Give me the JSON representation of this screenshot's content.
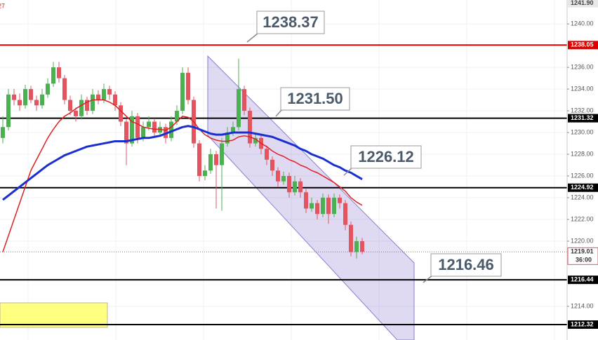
{
  "chart_data": {
    "type": "candlestick",
    "corner_text": "27",
    "up_color": "#4caf50",
    "down_color": "#e5535f",
    "ylim": [
      1210.9,
      1242.2
    ],
    "yticks": [
      {
        "value": 1240,
        "label": "1240.00"
      },
      {
        "value": 1236,
        "label": "1236.00"
      },
      {
        "value": 1234,
        "label": "1234.00"
      },
      {
        "value": 1232,
        "label": "1232.00"
      },
      {
        "value": 1230,
        "label": "1230.00"
      },
      {
        "value": 1228,
        "label": "1228.00"
      },
      {
        "value": 1226,
        "label": "1226.00"
      },
      {
        "value": 1224,
        "label": "1224.00"
      },
      {
        "value": 1222,
        "label": "1222.00"
      },
      {
        "value": 1220,
        "label": "1220.00"
      },
      {
        "value": 1214,
        "label": "1214.00"
      }
    ],
    "top_price": {
      "value": 1241.9,
      "label": "1241.90"
    },
    "levels": [
      {
        "price": 1238.05,
        "color": "#e00000"
      },
      {
        "price": 1231.32,
        "color": "#000000"
      },
      {
        "price": 1224.92,
        "color": "#000000"
      },
      {
        "price": 1216.44,
        "color": "#000000"
      },
      {
        "price": 1212.32,
        "color": "#000000"
      }
    ],
    "last_price": {
      "price": 1219.01,
      "color": "#e5535f",
      "countdown": "36:00"
    },
    "callouts": [
      "1238.37",
      "1231.50",
      "1226.12",
      "1216.46"
    ],
    "candles": [
      [
        1229.5,
        1231.5,
        1229,
        1230.5
      ],
      [
        1230.5,
        1234,
        1230.2,
        1233.5
      ],
      [
        1233.5,
        1234,
        1232.5,
        1233
      ],
      [
        1233,
        1233.6,
        1232,
        1232.5
      ],
      [
        1232.5,
        1234.4,
        1232.2,
        1234
      ],
      [
        1234,
        1234.3,
        1232.7,
        1233
      ],
      [
        1233,
        1233.4,
        1232,
        1232.5
      ],
      [
        1232.5,
        1234,
        1232.2,
        1233.5
      ],
      [
        1233.5,
        1235,
        1233.2,
        1234.5
      ],
      [
        1234.5,
        1236.5,
        1234.2,
        1236
      ],
      [
        1236,
        1236.5,
        1234.6,
        1235
      ],
      [
        1235,
        1235.3,
        1232.6,
        1233
      ],
      [
        1233,
        1233.4,
        1231.6,
        1232
      ],
      [
        1232,
        1232.3,
        1231,
        1231.5
      ],
      [
        1231.5,
        1233.5,
        1231.2,
        1233
      ],
      [
        1233,
        1233.3,
        1231.6,
        1232
      ],
      [
        1232,
        1234,
        1231.7,
        1233.5
      ],
      [
        1233.5,
        1233.9,
        1232.6,
        1233
      ],
      [
        1233,
        1234.5,
        1232.7,
        1234
      ],
      [
        1234,
        1234.3,
        1233,
        1233.5
      ],
      [
        1233.5,
        1233.8,
        1232,
        1232.5
      ],
      [
        1232.5,
        1232.8,
        1230.6,
        1231
      ],
      [
        1231,
        1231.3,
        1227,
        1229
      ],
      [
        1229,
        1232,
        1228.7,
        1231.5
      ],
      [
        1231.5,
        1231.8,
        1229,
        1229.5
      ],
      [
        1229.5,
        1231,
        1229.2,
        1230.5
      ],
      [
        1230.5,
        1231.5,
        1230.2,
        1231
      ],
      [
        1231,
        1231.3,
        1229.6,
        1230
      ],
      [
        1230,
        1231,
        1229.7,
        1230.5
      ],
      [
        1230.5,
        1230.8,
        1229,
        1229.5
      ],
      [
        1229.5,
        1231.5,
        1229.2,
        1231
      ],
      [
        1231,
        1232.5,
        1230.7,
        1232
      ],
      [
        1232,
        1236,
        1231.7,
        1235.5
      ],
      [
        1235.5,
        1236,
        1232.6,
        1233
      ],
      [
        1233,
        1233.3,
        1228.6,
        1229
      ],
      [
        1229,
        1229.3,
        1225.5,
        1226
      ],
      [
        1226,
        1227,
        1225.6,
        1226.5
      ],
      [
        1226.5,
        1228.5,
        1226.2,
        1228
      ],
      [
        1228,
        1228.3,
        1223,
        1227
      ],
      [
        1227,
        1229.5,
        1222.8,
        1229
      ],
      [
        1229,
        1230.5,
        1228.7,
        1230
      ],
      [
        1230,
        1231,
        1229.7,
        1230.5
      ],
      [
        1230.5,
        1236.8,
        1230.2,
        1234
      ],
      [
        1234,
        1234.3,
        1231.6,
        1232
      ],
      [
        1232,
        1232.3,
        1228.6,
        1229
      ],
      [
        1229,
        1230,
        1228.7,
        1229.5
      ],
      [
        1229.5,
        1229.8,
        1228,
        1228.5
      ],
      [
        1228.5,
        1228.8,
        1227,
        1227.5
      ],
      [
        1227.5,
        1227.8,
        1226,
        1226.5
      ],
      [
        1226.5,
        1226.8,
        1225,
        1225.5
      ],
      [
        1225.5,
        1226.4,
        1225.2,
        1226
      ],
      [
        1226,
        1226.3,
        1224,
        1224.5
      ],
      [
        1224.5,
        1226,
        1224.2,
        1225.5
      ],
      [
        1225.5,
        1225.8,
        1224,
        1224.5
      ],
      [
        1224.5,
        1224.8,
        1222.6,
        1223
      ],
      [
        1223,
        1224,
        1222.7,
        1223.5
      ],
      [
        1223.5,
        1223.8,
        1222,
        1222.5
      ],
      [
        1222.5,
        1224.4,
        1222.2,
        1224
      ],
      [
        1224,
        1224.3,
        1221.6,
        1222.5
      ],
      [
        1222.5,
        1224.4,
        1222.2,
        1224
      ],
      [
        1224,
        1224.3,
        1223,
        1223.5
      ],
      [
        1223.5,
        1223.8,
        1221,
        1221.5
      ],
      [
        1221.5,
        1221.8,
        1218.6,
        1219
      ],
      [
        1219,
        1220.4,
        1218.4,
        1220
      ],
      [
        1220,
        1220.3,
        1218.8,
        1219.01
      ]
    ],
    "series": [
      {
        "name": "fast-ma",
        "color": "#e02020",
        "values": [
          1219,
          1220.5,
          1222,
          1223.5,
          1225,
          1226.5,
          1227.5,
          1228.5,
          1229.5,
          1230.3,
          1231,
          1231.5,
          1231.8,
          1232.2,
          1232.5,
          1232.8,
          1233,
          1233,
          1233,
          1232.8,
          1232.5,
          1232,
          1231.5,
          1231,
          1230.8,
          1230.5,
          1230.4,
          1230.3,
          1230.3,
          1230.2,
          1230.5,
          1231,
          1231.5,
          1231.4,
          1231,
          1230.3,
          1229.8,
          1229.5,
          1229.3,
          1229.2,
          1229.2,
          1229.3,
          1229.6,
          1229.7,
          1229.6,
          1229.4,
          1229,
          1228.7,
          1228.3,
          1228,
          1227.8,
          1227.5,
          1227.3,
          1227,
          1226.8,
          1226.5,
          1226.3,
          1226,
          1225.7,
          1225.4,
          1225,
          1224.6,
          1224,
          1223.6,
          1223.3
        ]
      },
      {
        "name": "slow-ma",
        "color": "#1a2fd0",
        "values": [
          1223.8,
          1224.2,
          1224.6,
          1225,
          1225.4,
          1225.8,
          1226.2,
          1226.6,
          1227,
          1227.3,
          1227.6,
          1227.9,
          1228.1,
          1228.3,
          1228.5,
          1228.7,
          1228.8,
          1228.9,
          1229,
          1229.1,
          1229.2,
          1229.2,
          1229.2,
          1229.3,
          1229.4,
          1229.5,
          1229.5,
          1229.6,
          1229.7,
          1229.9,
          1230.1,
          1230.3,
          1230.5,
          1230.6,
          1230.5,
          1230.3,
          1230.1,
          1229.9,
          1229.8,
          1229.8,
          1229.9,
          1230,
          1230,
          1230,
          1230,
          1229.9,
          1229.8,
          1229.7,
          1229.6,
          1229.4,
          1229.2,
          1229,
          1228.8,
          1228.5,
          1228.3,
          1228,
          1227.8,
          1227.6,
          1227.3,
          1227,
          1226.8,
          1226.5,
          1226.3,
          1226,
          1225.7
        ]
      }
    ]
  }
}
